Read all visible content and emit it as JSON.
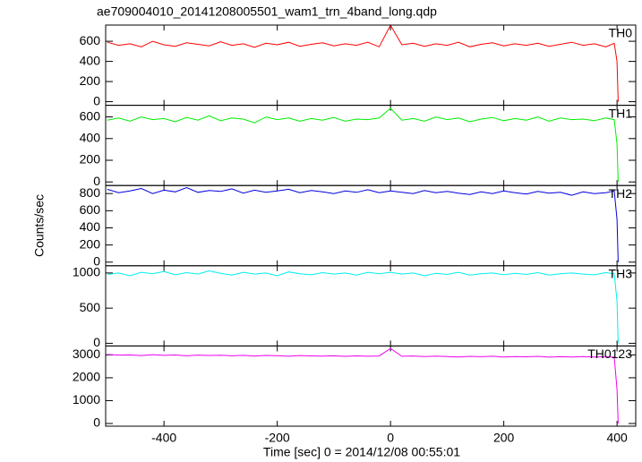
{
  "chart_data": {
    "type": "line",
    "title": "ae709004010_20141208005501_wam1_trn_4band_long.qdp",
    "xlabel": "Time [sec] 0 = 2014/12/08 00:55:01",
    "ylabel": "Counts/sec",
    "xlim": [
      -503,
      433
    ],
    "xticks": [
      -400,
      -200,
      0,
      200,
      400
    ],
    "x": [
      -500,
      -480,
      -460,
      -440,
      -420,
      -400,
      -380,
      -360,
      -340,
      -320,
      -300,
      -280,
      -260,
      -240,
      -220,
      -200,
      -180,
      -160,
      -140,
      -120,
      -100,
      -80,
      -60,
      -40,
      -20,
      0,
      20,
      40,
      60,
      80,
      100,
      120,
      140,
      160,
      180,
      200,
      220,
      240,
      260,
      280,
      300,
      320,
      340,
      360,
      380,
      395,
      400,
      402
    ],
    "panels": [
      {
        "name": "TH0",
        "color": "#ff0000",
        "ylim": [
          -36,
          761
        ],
        "yticks": [
          0,
          200,
          400,
          600
        ],
        "values": [
          590,
          560,
          575,
          545,
          600,
          565,
          550,
          585,
          570,
          555,
          595,
          560,
          575,
          540,
          580,
          565,
          590,
          550,
          570,
          585,
          555,
          575,
          560,
          590,
          545,
          760,
          565,
          580,
          550,
          575,
          560,
          590,
          545,
          570,
          585,
          555,
          575,
          560,
          580,
          550,
          570,
          590,
          560,
          575,
          545,
          580,
          400,
          0
        ]
      },
      {
        "name": "TH1",
        "color": "#00ee00",
        "ylim": [
          -33,
          707
        ],
        "yticks": [
          0,
          200,
          400,
          600
        ],
        "values": [
          570,
          590,
          560,
          600,
          575,
          585,
          555,
          595,
          570,
          610,
          565,
          590,
          580,
          545,
          600,
          575,
          590,
          560,
          585,
          570,
          595,
          560,
          580,
          575,
          590,
          680,
          570,
          585,
          560,
          600,
          575,
          590,
          555,
          580,
          595,
          565,
          585,
          570,
          600,
          560,
          590,
          575,
          580,
          565,
          590,
          575,
          350,
          0
        ]
      },
      {
        "name": "TH2",
        "color": "#0000dd",
        "ylim": [
          -42,
          894
        ],
        "yticks": [
          0,
          200,
          400,
          600,
          800
        ],
        "values": [
          850,
          810,
          830,
          860,
          800,
          840,
          820,
          870,
          815,
          835,
          825,
          855,
          805,
          840,
          815,
          830,
          850,
          810,
          835,
          820,
          800,
          830,
          815,
          845,
          810,
          830,
          815,
          800,
          835,
          810,
          825,
          805,
          790,
          820,
          800,
          830,
          810,
          795,
          825,
          805,
          815,
          780,
          820,
          800,
          810,
          830,
          500,
          0
        ]
      },
      {
        "name": "TH3",
        "color": "#00eeee",
        "ylim": [
          -38,
          1103
        ],
        "yticks": [
          0,
          500,
          1000
        ],
        "values": [
          980,
          1000,
          960,
          1010,
          990,
          1020,
          975,
          1005,
          985,
          1030,
          995,
          970,
          1010,
          985,
          1000,
          960,
          1015,
          990,
          975,
          1005,
          985,
          1000,
          970,
          1010,
          990,
          1010,
          985,
          1000,
          960,
          995,
          980,
          1010,
          970,
          990,
          1000,
          975,
          995,
          980,
          1005,
          970,
          990,
          1000,
          985,
          975,
          1005,
          990,
          600,
          0
        ]
      },
      {
        "name": "TH0123",
        "color": "#ee00ee",
        "ylim": [
          -117,
          3390
        ],
        "yticks": [
          0,
          1000,
          2000,
          3000
        ],
        "values": [
          3020,
          2990,
          3000,
          2970,
          3010,
          2980,
          2995,
          2960,
          2990,
          2975,
          2985,
          2960,
          2980,
          2950,
          2975,
          2965,
          2940,
          2970,
          2955,
          2945,
          2960,
          2935,
          2955,
          2940,
          2950,
          3280,
          2940,
          2950,
          2925,
          2945,
          2930,
          2910,
          2935,
          2920,
          2940,
          2905,
          2930,
          2915,
          2935,
          2900,
          2920,
          2910,
          2930,
          2905,
          2915,
          2900,
          1500,
          0
        ]
      }
    ]
  }
}
